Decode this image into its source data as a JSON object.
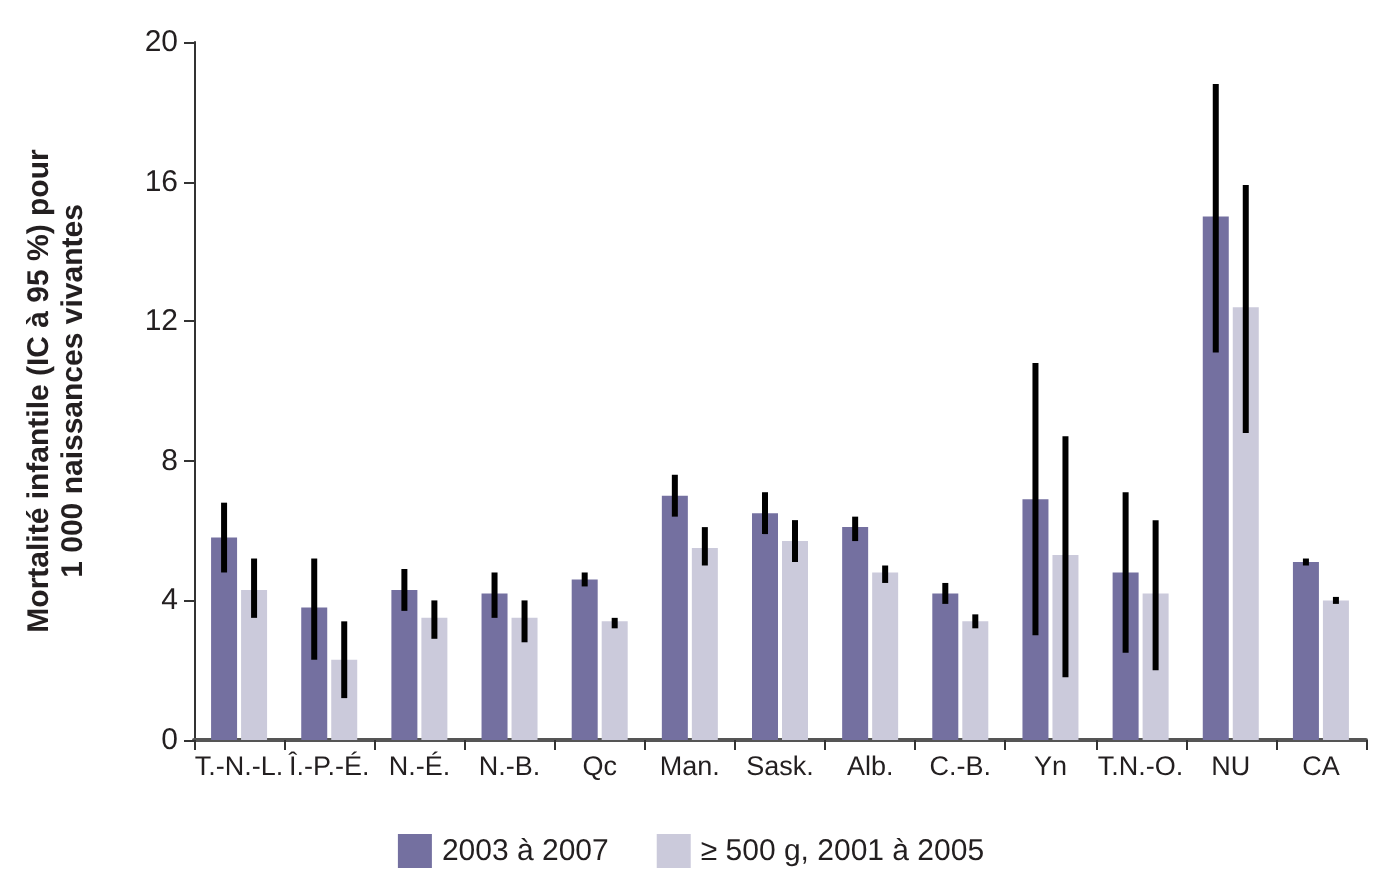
{
  "chart_data": {
    "type": "bar",
    "ylabel": "Mortalité infantile (IC à 95 %) pour\n1 000 naissances vivantes",
    "categories": [
      "T.-N.-L.",
      "Î.-P.-É.",
      "N.-É.",
      "N.-B.",
      "Qc",
      "Man.",
      "Sask.",
      "Alb.",
      "C.-B.",
      "Yn",
      "T.N.-O.",
      "NU",
      "CA"
    ],
    "series": [
      {
        "name": "2003 à 2007",
        "color": "#7470a0",
        "values": [
          5.8,
          3.8,
          4.3,
          4.2,
          4.6,
          7.0,
          6.5,
          6.1,
          4.2,
          6.9,
          4.8,
          15.0,
          5.1
        ],
        "errors": [
          [
            4.8,
            6.8
          ],
          [
            2.3,
            5.2
          ],
          [
            3.7,
            4.9
          ],
          [
            3.5,
            4.8
          ],
          [
            4.4,
            4.8
          ],
          [
            6.4,
            7.6
          ],
          [
            5.9,
            7.1
          ],
          [
            5.7,
            6.4
          ],
          [
            3.9,
            4.5
          ],
          [
            3.0,
            10.8
          ],
          [
            2.5,
            7.1
          ],
          [
            11.1,
            18.8
          ],
          [
            5.0,
            5.2
          ]
        ]
      },
      {
        "name": "≥ 500 g, 2001 à 2005",
        "color": "#cbcadb",
        "values": [
          4.3,
          2.3,
          3.5,
          3.5,
          3.4,
          5.5,
          5.7,
          4.8,
          3.4,
          5.3,
          4.2,
          12.4,
          4.0
        ],
        "errors": [
          [
            3.5,
            5.2
          ],
          [
            1.2,
            3.4
          ],
          [
            2.9,
            4.0
          ],
          [
            2.8,
            4.0
          ],
          [
            3.2,
            3.5
          ],
          [
            5.0,
            6.1
          ],
          [
            5.1,
            6.3
          ],
          [
            4.5,
            5.0
          ],
          [
            3.2,
            3.6
          ],
          [
            1.8,
            8.7
          ],
          [
            2.0,
            6.3
          ],
          [
            8.8,
            15.9
          ],
          [
            3.9,
            4.1
          ]
        ]
      }
    ],
    "ylim": [
      0,
      20
    ],
    "yticks": [
      0,
      4,
      8,
      12,
      16,
      20
    ],
    "grid": false,
    "legend": "bottom"
  }
}
